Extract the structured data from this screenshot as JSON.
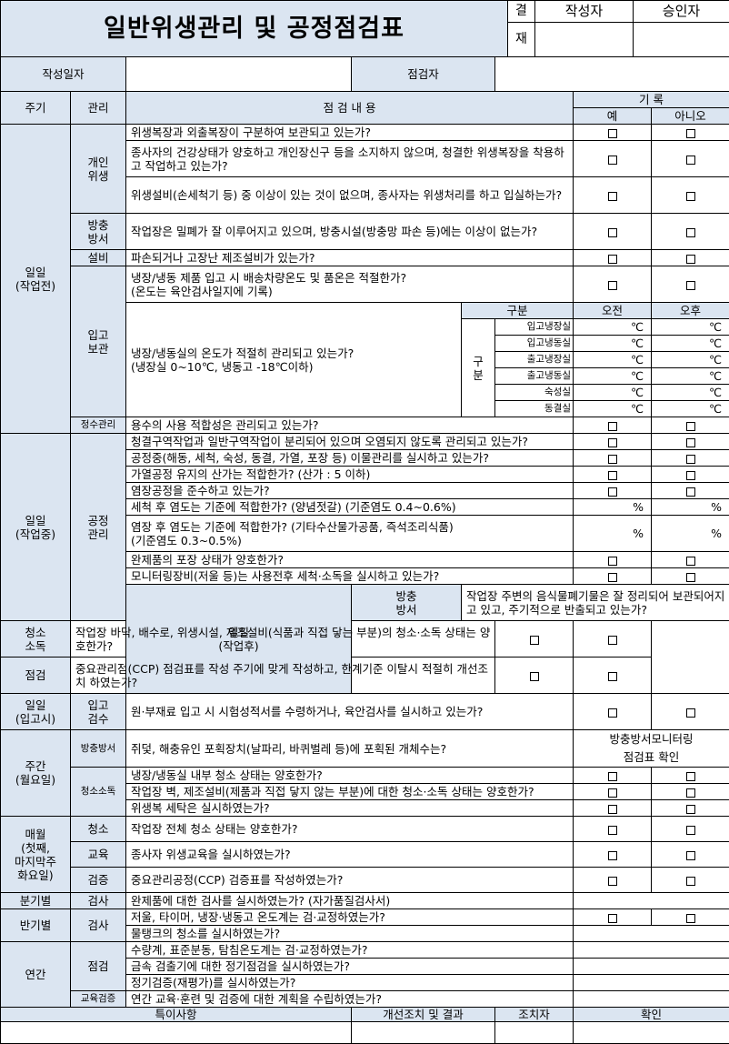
{
  "header": {
    "title": "일반위생관리 및 공정점검표",
    "approval_l1": "결",
    "approval_l2": "재",
    "writer": "작성자",
    "approver": "승인자"
  },
  "info": {
    "date_label": "작성일자",
    "inspector_label": "점검자"
  },
  "cols": {
    "period": "주기",
    "manage": "관리",
    "content": "점 검 내 용",
    "record": "기 록",
    "yes": "예",
    "no": "아니오"
  },
  "r": {
    "daily_pre": "일일\n(작업전)",
    "personal": "개인\n위생",
    "q1": "위생복장과 외출복장이 구분하여 보관되고 있는가?",
    "q2": "종사자의 건강상태가 양호하고 개인장신구 등을 소지하지 않으며, 청결한 위생복장을 착용하고 작업하고 있는가?",
    "q3": "위생설비(손세척기 등) 중 이상이 있는 것이 없으며, 종사자는 위생처리를 하고 입실하는가?",
    "pest": "방충\n방서",
    "q4": "작업장은 밀폐가 잘 이루어지고 있으며, 방충시설(방충망 파손 등)에는 이상이 없는가?",
    "facility": "설비",
    "q5": "파손되거나 고장난 제조설비가 있는가?",
    "inbound": "입고\n보관",
    "q6": "냉장/냉동 제품 입고 시 배송차량온도 및 품온은 적절한가?\n(온도는 육안검사일지에 기록)",
    "q7": "냉장/냉동실의 온도가 적절히 관리되고 있는가?\n(냉장실 0~10℃, 냉동고 -18℃이하)",
    "gubun": "구분",
    "am": "오전",
    "pm": "오후",
    "gubun_v": "구\n분",
    "rooms": [
      "입고냉장실",
      "입고냉동실",
      "출고냉장실",
      "출고냉동실",
      "숙성실",
      "동결실"
    ],
    "deg": "℃",
    "water": "정수관리",
    "q8": "용수의 사용 적합성은 관리되고 있는가?",
    "daily_mid": "일일\n(작업중)",
    "process": "공정\n관리",
    "q9": "청결구역작업과 일반구역작업이 분리되어 있으며 오염되지 않도록 관리되고 있는가?",
    "q10": "공정중(해동, 세척, 숙성, 동결, 가열, 포장 등) 이물관리를 실시하고 있는가?",
    "q11": "가열공정 유지의 산가는 적합한가? (산가 : 5 이하)",
    "q12": "염장공정을 준수하고 있는가?",
    "q13": "세척 후 염도는 기준에 적합한가? (양념젓갈) (기준염도 0.4~0.6%)",
    "q14": "염장 후 염도는 기준에 적합한가? (기타수산물가공품, 즉석조리식품)\n(기준염도 0.3~0.5%)",
    "pct": "%",
    "q15": "완제품의 포장 상태가 양호한가?",
    "q16": "모니터링장비(저울 등)는 사용전후 세척·소독을 실시하고 있는가?",
    "daily_post": "일일\n(작업후)",
    "pest2": "방충\n방서",
    "q17": "작업장 주변의 음식물폐기물은 잘 정리되어 보관되어지고 있고, 주기적으로 반출되고 있는가?",
    "clean": "청소\n소독",
    "q18": "작업장 바닥, 배수로, 위생시설, 제조설비(식품과 직접 닿는 부분)의 청소·소독 상태는 양호한가?",
    "check": "점검",
    "q19": "중요관리점(CCP) 점검표를 작성 주기에 맞게 작성하고, 한계기준 이탈시 적절히 개선조치 하였는가?",
    "daily_in": "일일\n(입고시)",
    "inspect_in": "입고\n검수",
    "q20": "원·부재료 입고 시 시험성적서를 수령하거나, 육안검사를 실시하고 있는가?",
    "weekly": "주간\n(월요일)",
    "pest3": "방충방서",
    "q21": "쥐덫, 해충유인 포획장치(날파리, 바퀴벌레 등)에 포획된 개체수는?",
    "pest_note": "방충방서모니터링\n점검표 확인",
    "clean2": "청소소독",
    "q22": "냉장/냉동실 내부 청소 상태는 양호한가?",
    "q23": "작업장 벽, 제조설비(제품과 직접 닿지 않는 부분)에 대한 청소·소독 상태는 양호한가?",
    "q24": "위생복 세탁은 실시하였는가?",
    "monthly": "매월\n(첫째,\n마지막주\n화요일)",
    "clean3": "청소",
    "q25": "작업장 전체 청소 상태는 양호한가?",
    "edu": "교육",
    "q26": "종사자 위생교육을 실시하였는가?",
    "verify": "검증",
    "q27": "중요관리공정(CCP) 검증표를 작성하였는가?",
    "quarter": "분기별",
    "test": "검사",
    "q28": "완제품에 대한 검사를 실시하였는가? (자가품질검사서)",
    "half": "반기별",
    "test2": "검사",
    "q29": "저울, 타이머, 냉장·냉동고 온도계는 검·교정하였는가?",
    "q30": "물탱크의 청소를 실시하였는가?",
    "annual": "연간",
    "check2": "점검",
    "q31": "수량계, 표준분동, 탐침온도계는 검·교정하였는가?",
    "q32": "금속 검출기에 대한 정기점검을 실시하였는가?",
    "q33": "정기검증(재평가)를 실시하였는가?",
    "eduverify": "교육검증",
    "q34": "연간 교육·훈련 및 검증에 대한 계획을 수립하였는가?"
  },
  "footer": {
    "special": "특이사항",
    "action": "개선조치 및 결과",
    "actor": "조치자",
    "confirm": "확인"
  }
}
